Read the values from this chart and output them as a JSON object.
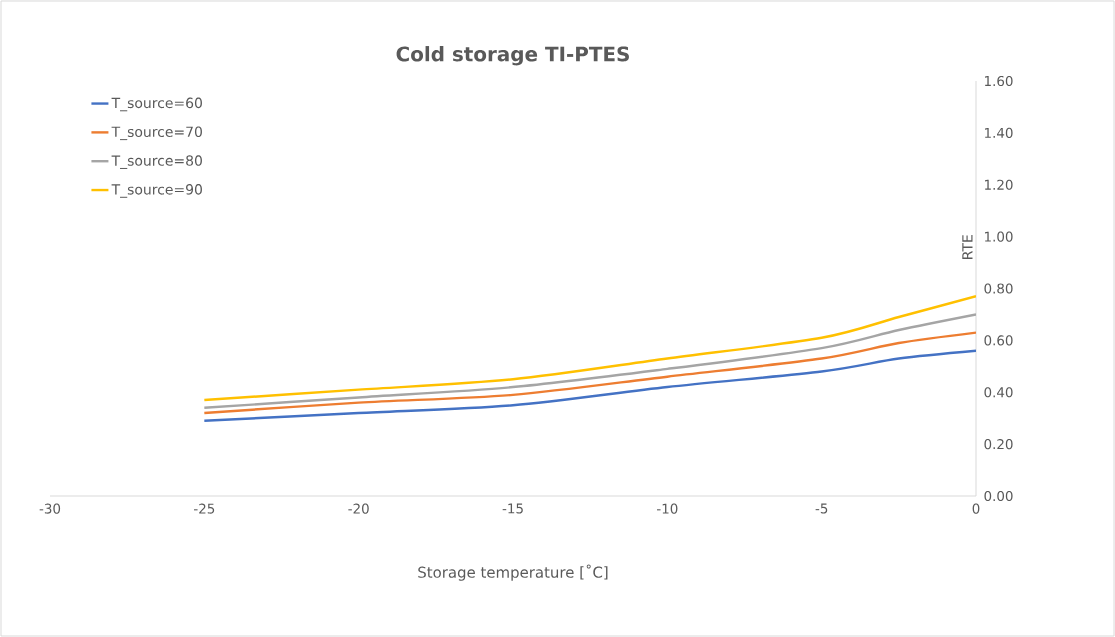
{
  "chart_data": {
    "type": "line",
    "title": "Cold storage TI-PTES",
    "xlabel": "Storage temperature [˚C]",
    "ylabel": "RTE",
    "x": [
      -25,
      -20,
      -15,
      -10,
      -5,
      -2.5,
      0
    ],
    "series": [
      {
        "name": "T_source=60",
        "color": "#4472c4",
        "values": [
          0.29,
          0.32,
          0.35,
          0.42,
          0.48,
          0.53,
          0.56
        ]
      },
      {
        "name": "T_source=70",
        "color": "#ed7d31",
        "values": [
          0.32,
          0.36,
          0.39,
          0.46,
          0.53,
          0.59,
          0.63
        ]
      },
      {
        "name": "T_source=80",
        "color": "#a5a5a5",
        "values": [
          0.34,
          0.38,
          0.42,
          0.49,
          0.57,
          0.64,
          0.7
        ]
      },
      {
        "name": "T_source=90",
        "color": "#ffc000",
        "values": [
          0.37,
          0.41,
          0.45,
          0.53,
          0.61,
          0.69,
          0.77
        ]
      }
    ],
    "xlim": [
      -30,
      0
    ],
    "ylim": [
      0,
      1.6
    ],
    "xticks": [
      -30,
      -25,
      -20,
      -15,
      -10,
      -5,
      0
    ],
    "yticks": [
      {
        "value": 0,
        "label": "0.00"
      },
      {
        "value": 0.2,
        "label": "0.20"
      },
      {
        "value": 0.4,
        "label": "0.40"
      },
      {
        "value": 0.6,
        "label": "0.60"
      },
      {
        "value": 0.8,
        "label": "0.80"
      },
      {
        "value": 1.0,
        "label": "1.00"
      },
      {
        "value": 1.2,
        "label": "1.20"
      },
      {
        "value": 1.4,
        "label": "1.40"
      },
      {
        "value": 1.6,
        "label": "1.60"
      }
    ],
    "legend": "top left",
    "marker": "none",
    "line_style": "solid"
  }
}
